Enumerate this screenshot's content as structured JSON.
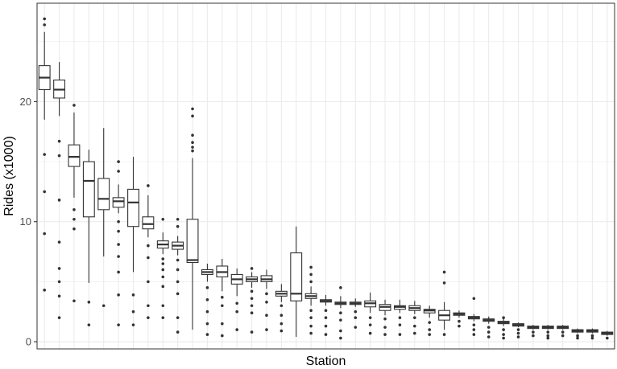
{
  "chart_data": {
    "type": "boxplot",
    "title": "",
    "xlabel": "Station",
    "ylabel": "Rides (x1000)",
    "ylim": [
      -0.6,
      28.2
    ],
    "yticks": [
      0,
      10,
      20
    ],
    "x_tick_labels_shown": false,
    "grid": true,
    "legend": "none",
    "colors": {
      "background": "#ffffff",
      "grid": "#ebebeb",
      "box_stroke": "#333333",
      "outlier": "#333333",
      "frame": "#333333"
    },
    "boxes": [
      {
        "q1": 21.0,
        "median": 22.0,
        "q3": 23.0,
        "lower": 18.5,
        "upper": 25.8,
        "outliers": [
          26.9,
          26.4,
          15.6,
          12.5,
          9.0,
          4.3
        ]
      },
      {
        "q1": 20.3,
        "median": 21.0,
        "q3": 21.8,
        "lower": 18.8,
        "upper": 23.3,
        "outliers": [
          16.7,
          15.5,
          11.8,
          8.3,
          6.1,
          5.0,
          3.8,
          2.0
        ]
      },
      {
        "q1": 14.6,
        "median": 15.4,
        "q3": 16.4,
        "lower": 12.0,
        "upper": 19.1,
        "outliers": [
          19.7,
          11.0,
          10.2,
          9.4,
          3.4
        ]
      },
      {
        "q1": 10.4,
        "median": 13.4,
        "q3": 15.0,
        "lower": 4.9,
        "upper": 16.0,
        "outliers": [
          3.3,
          1.4
        ]
      },
      {
        "q1": 11.0,
        "median": 11.9,
        "q3": 13.6,
        "lower": 7.1,
        "upper": 17.8,
        "outliers": [
          3.0
        ]
      },
      {
        "q1": 11.2,
        "median": 11.7,
        "q3": 12.0,
        "lower": 10.7,
        "upper": 13.1,
        "outliers": [
          15.0,
          14.2,
          10.0,
          9.2,
          8.1,
          7.1,
          5.8,
          3.9,
          1.4
        ]
      },
      {
        "q1": 9.6,
        "median": 11.6,
        "q3": 12.7,
        "lower": 5.8,
        "upper": 15.4,
        "outliers": [
          3.9,
          2.5,
          1.4
        ]
      },
      {
        "q1": 9.4,
        "median": 9.8,
        "q3": 10.4,
        "lower": 8.7,
        "upper": 12.2,
        "outliers": [
          13.0,
          8.0,
          7.0,
          5.0,
          3.0,
          2.0
        ]
      },
      {
        "q1": 7.8,
        "median": 8.1,
        "q3": 8.4,
        "lower": 7.3,
        "upper": 9.1,
        "outliers": [
          10.2,
          6.9,
          6.5,
          6.0,
          5.4,
          4.6,
          3.0,
          2.0
        ]
      },
      {
        "q1": 7.7,
        "median": 8.0,
        "q3": 8.3,
        "lower": 7.2,
        "upper": 8.8,
        "outliers": [
          10.2,
          9.6,
          6.8,
          6.0,
          5.0,
          4.0,
          2.0,
          0.8
        ]
      },
      {
        "q1": 6.6,
        "median": 6.8,
        "q3": 10.2,
        "lower": 1.0,
        "upper": 15.3,
        "outliers": [
          19.4,
          18.8,
          17.2,
          16.6,
          16.2,
          15.9
        ]
      },
      {
        "q1": 5.6,
        "median": 5.8,
        "q3": 6.0,
        "lower": 5.0,
        "upper": 6.5,
        "outliers": [
          4.5,
          3.5,
          2.5,
          1.5,
          0.6
        ]
      },
      {
        "q1": 5.4,
        "median": 5.8,
        "q3": 6.3,
        "lower": 4.2,
        "upper": 6.9,
        "outliers": [
          3.7,
          3.0,
          1.5,
          0.5
        ]
      },
      {
        "q1": 4.8,
        "median": 5.2,
        "q3": 5.6,
        "lower": 3.8,
        "upper": 6.1,
        "outliers": [
          3.2,
          2.5,
          1.0
        ]
      },
      {
        "q1": 5.0,
        "median": 5.2,
        "q3": 5.4,
        "lower": 4.5,
        "upper": 5.8,
        "outliers": [
          6.1,
          4.2,
          3.6,
          3.0,
          2.4,
          0.8
        ]
      },
      {
        "q1": 5.0,
        "median": 5.2,
        "q3": 5.5,
        "lower": 4.4,
        "upper": 6.0,
        "outliers": [
          4.0,
          3.3,
          2.2,
          1.0
        ]
      },
      {
        "q1": 3.8,
        "median": 4.0,
        "q3": 4.2,
        "lower": 3.3,
        "upper": 4.8,
        "outliers": [
          3.0,
          2.2,
          1.5,
          0.9
        ]
      },
      {
        "q1": 3.4,
        "median": 4.0,
        "q3": 7.4,
        "lower": 0.4,
        "upper": 9.6,
        "outliers": []
      },
      {
        "q1": 3.6,
        "median": 3.8,
        "q3": 4.0,
        "lower": 3.0,
        "upper": 4.6,
        "outliers": [
          6.2,
          5.6,
          5.0,
          2.6,
          2.0,
          1.3,
          0.7
        ]
      },
      {
        "q1": 3.3,
        "median": 3.4,
        "q3": 3.5,
        "lower": 3.0,
        "upper": 3.9,
        "outliers": [
          2.6,
          2.0,
          1.3,
          0.6
        ]
      },
      {
        "q1": 3.1,
        "median": 3.2,
        "q3": 3.3,
        "lower": 2.8,
        "upper": 3.8,
        "outliers": [
          4.5,
          2.4,
          1.8,
          0.9,
          0.3
        ]
      },
      {
        "q1": 3.1,
        "median": 3.2,
        "q3": 3.3,
        "lower": 2.9,
        "upper": 3.6,
        "outliers": [
          2.5,
          2.0,
          1.2
        ]
      },
      {
        "q1": 2.9,
        "median": 3.2,
        "q3": 3.4,
        "lower": 2.4,
        "upper": 4.1,
        "outliers": [
          2.0,
          1.4,
          0.7
        ]
      },
      {
        "q1": 2.6,
        "median": 2.9,
        "q3": 3.1,
        "lower": 2.2,
        "upper": 3.5,
        "outliers": [
          1.9,
          1.2,
          0.6
        ]
      },
      {
        "q1": 2.7,
        "median": 2.9,
        "q3": 3.0,
        "lower": 2.4,
        "upper": 3.5,
        "outliers": [
          2.0,
          1.4,
          0.6
        ]
      },
      {
        "q1": 2.6,
        "median": 2.8,
        "q3": 3.0,
        "lower": 2.3,
        "upper": 3.4,
        "outliers": [
          2.0,
          1.3,
          0.7
        ]
      },
      {
        "q1": 2.4,
        "median": 2.6,
        "q3": 2.7,
        "lower": 2.0,
        "upper": 3.0,
        "outliers": [
          1.6,
          1.0,
          0.6
        ]
      },
      {
        "q1": 1.8,
        "median": 2.2,
        "q3": 2.6,
        "lower": 1.0,
        "upper": 3.3,
        "outliers": [
          5.8,
          4.9,
          0.6
        ]
      },
      {
        "q1": 2.2,
        "median": 2.3,
        "q3": 2.4,
        "lower": 2.0,
        "upper": 2.6,
        "outliers": [
          1.7,
          1.3
        ]
      },
      {
        "q1": 1.9,
        "median": 2.0,
        "q3": 2.1,
        "lower": 1.7,
        "upper": 2.3,
        "outliers": [
          3.6,
          1.4,
          1.0,
          0.6
        ]
      },
      {
        "q1": 1.7,
        "median": 1.8,
        "q3": 1.9,
        "lower": 1.5,
        "upper": 2.1,
        "outliers": [
          1.2,
          0.8,
          0.4
        ]
      },
      {
        "q1": 1.5,
        "median": 1.6,
        "q3": 1.7,
        "lower": 1.3,
        "upper": 1.9,
        "outliers": [
          2.0,
          1.0,
          0.6,
          0.3
        ]
      },
      {
        "q1": 1.3,
        "median": 1.4,
        "q3": 1.5,
        "lower": 1.2,
        "upper": 1.6,
        "outliers": [
          1.0,
          0.7,
          0.4
        ]
      },
      {
        "q1": 1.1,
        "median": 1.2,
        "q3": 1.3,
        "lower": 1.0,
        "upper": 1.4,
        "outliers": [
          0.8,
          0.5
        ]
      },
      {
        "q1": 1.1,
        "median": 1.2,
        "q3": 1.3,
        "lower": 1.0,
        "upper": 1.4,
        "outliers": [
          0.8,
          0.5,
          0.3
        ]
      },
      {
        "q1": 1.1,
        "median": 1.2,
        "q3": 1.3,
        "lower": 1.0,
        "upper": 1.4,
        "outliers": [
          0.8,
          0.5
        ]
      },
      {
        "q1": 0.8,
        "median": 0.9,
        "q3": 1.0,
        "lower": 0.7,
        "upper": 1.1,
        "outliers": [
          0.5,
          0.3
        ]
      },
      {
        "q1": 0.8,
        "median": 0.9,
        "q3": 1.0,
        "lower": 0.7,
        "upper": 1.1,
        "outliers": [
          0.5,
          0.3
        ]
      },
      {
        "q1": 0.6,
        "median": 0.7,
        "q3": 0.8,
        "lower": 0.5,
        "upper": 0.9,
        "outliers": [
          0.3
        ]
      }
    ]
  }
}
